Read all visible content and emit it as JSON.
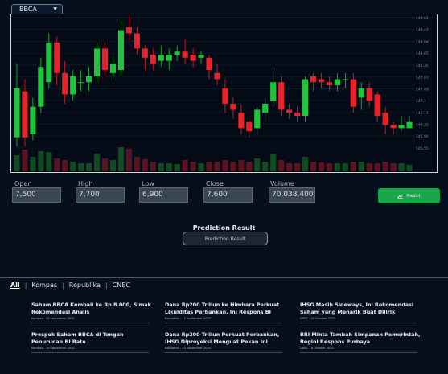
{
  "ticker": {
    "symbol": "BBCA"
  },
  "chart_data": {
    "type": "candlestick",
    "price_ticks": [
      "149.81",
      "149.43",
      "149.04",
      "148.65",
      "148.26",
      "147.87",
      "147.48",
      "147.1",
      "146.71",
      "146.32",
      "145.94",
      "145.55"
    ],
    "candles": [
      [
        145.9,
        147.5,
        148.3,
        145.6,
        20
      ],
      [
        147.4,
        145.9,
        147.8,
        145.6,
        27
      ],
      [
        146.0,
        146.9,
        147.2,
        145.8,
        18
      ],
      [
        146.9,
        148.2,
        148.5,
        146.7,
        25
      ],
      [
        147.7,
        149.0,
        149.3,
        147.5,
        24
      ],
      [
        149.0,
        148.0,
        149.2,
        147.6,
        16
      ],
      [
        148.0,
        147.3,
        148.4,
        147.0,
        14
      ],
      [
        147.3,
        147.9,
        148.1,
        147.1,
        12
      ],
      [
        147.7,
        147.7,
        148.1,
        147.4,
        10
      ],
      [
        147.7,
        147.9,
        148.2,
        147.4,
        10
      ],
      [
        147.9,
        148.8,
        149.0,
        147.7,
        22
      ],
      [
        148.8,
        148.1,
        149.0,
        147.9,
        16
      ],
      [
        148.0,
        148.3,
        148.5,
        147.8,
        14
      ],
      [
        148.1,
        149.4,
        149.7,
        147.9,
        30
      ],
      [
        149.5,
        149.3,
        149.9,
        149.1,
        28
      ],
      [
        149.3,
        148.8,
        149.5,
        148.6,
        18
      ],
      [
        148.8,
        148.5,
        148.9,
        148.1,
        15
      ],
      [
        148.6,
        148.3,
        148.8,
        148.1,
        12
      ],
      [
        148.4,
        148.6,
        148.9,
        148.2,
        10
      ],
      [
        148.4,
        148.6,
        148.8,
        148.1,
        10
      ],
      [
        148.6,
        148.7,
        148.9,
        148.4,
        9
      ],
      [
        148.7,
        148.5,
        149.1,
        148.3,
        14
      ],
      [
        148.6,
        148.4,
        148.8,
        148.2,
        12
      ],
      [
        148.5,
        148.6,
        148.7,
        148.3,
        10
      ],
      [
        148.5,
        148.1,
        148.6,
        147.8,
        12
      ],
      [
        148.0,
        147.8,
        148.3,
        147.6,
        12
      ],
      [
        147.5,
        147.0,
        147.8,
        146.7,
        14
      ],
      [
        147.0,
        146.8,
        147.2,
        146.5,
        12
      ],
      [
        146.7,
        146.2,
        147.0,
        146.0,
        14
      ],
      [
        146.4,
        146.1,
        146.6,
        145.9,
        12
      ],
      [
        146.2,
        146.8,
        146.9,
        146.0,
        16
      ],
      [
        146.7,
        147.0,
        147.2,
        146.4,
        12
      ],
      [
        147.1,
        147.7,
        148.2,
        146.9,
        22
      ],
      [
        147.7,
        146.8,
        147.9,
        146.6,
        14
      ],
      [
        146.8,
        146.7,
        147.0,
        146.5,
        10
      ],
      [
        146.7,
        146.6,
        146.9,
        146.4,
        10
      ],
      [
        146.6,
        147.8,
        147.9,
        146.4,
        18
      ],
      [
        147.9,
        147.7,
        148.0,
        147.4,
        12
      ],
      [
        147.8,
        147.7,
        148.0,
        147.5,
        11
      ],
      [
        147.7,
        147.6,
        147.9,
        147.4,
        10
      ],
      [
        147.6,
        147.8,
        148.0,
        147.4,
        10
      ],
      [
        147.8,
        147.8,
        148.0,
        147.5,
        10
      ],
      [
        147.8,
        146.9,
        148.0,
        146.7,
        12
      ],
      [
        147.2,
        147.5,
        147.7,
        146.8,
        12
      ],
      [
        147.5,
        147.1,
        147.7,
        146.9,
        10
      ],
      [
        147.3,
        146.6,
        147.4,
        146.4,
        10
      ],
      [
        146.7,
        146.3,
        146.9,
        146.0,
        12
      ],
      [
        146.3,
        146.2,
        146.4,
        146.0,
        10
      ],
      [
        146.2,
        146.3,
        146.6,
        146.1,
        10
      ],
      [
        146.2,
        146.4,
        146.6,
        146.2,
        8
      ]
    ]
  },
  "form": {
    "open_label": "Open",
    "open_value": "7,500",
    "high_label": "High",
    "high_value": "7,700",
    "low_label": "Low",
    "low_value": "6,900",
    "close_label": "Close",
    "close_value": "7,600",
    "volume_label": "Volume",
    "volume_value": "70,038,400",
    "predict_label": "Predict"
  },
  "prediction": {
    "title": "Prediction Result",
    "box_label": "Prediction Result"
  },
  "tabs": [
    "All",
    "Kompas",
    "Republika",
    "CNBC"
  ],
  "news": [
    {
      "title": "Saham BBCA Kembali ke Rp 8.000, Simak Rekomendasi Analis",
      "meta": "Kompas - 15 September 2025"
    },
    {
      "title": "Dana Rp200 Triliun ke Himbara Perkuat Likuiditas Perbankan, Ini Respons BI",
      "meta": "Republika - 17 September 2025"
    },
    {
      "title": "IHSG Masih Sideways, Ini Rekomendasi Saham yang Menarik Buat Dilirik",
      "meta": "CNBC - 10 October 2025"
    },
    {
      "title": "Prospek Saham BBCA di Tengah Penurunan BI Rate",
      "meta": "Kompas - 19 September 2025"
    },
    {
      "title": "Dana Rp200 Triliun Perkuat Perbankan, IHSG Diproyeksi Menguat Pekan Ini",
      "meta": "Republika - 15 September 2025"
    },
    {
      "title": "BRI Minta Tambah Simpanan Pemerintah, Begini Respons Purbaya",
      "meta": "CNBC - 8 October 2025"
    }
  ]
}
